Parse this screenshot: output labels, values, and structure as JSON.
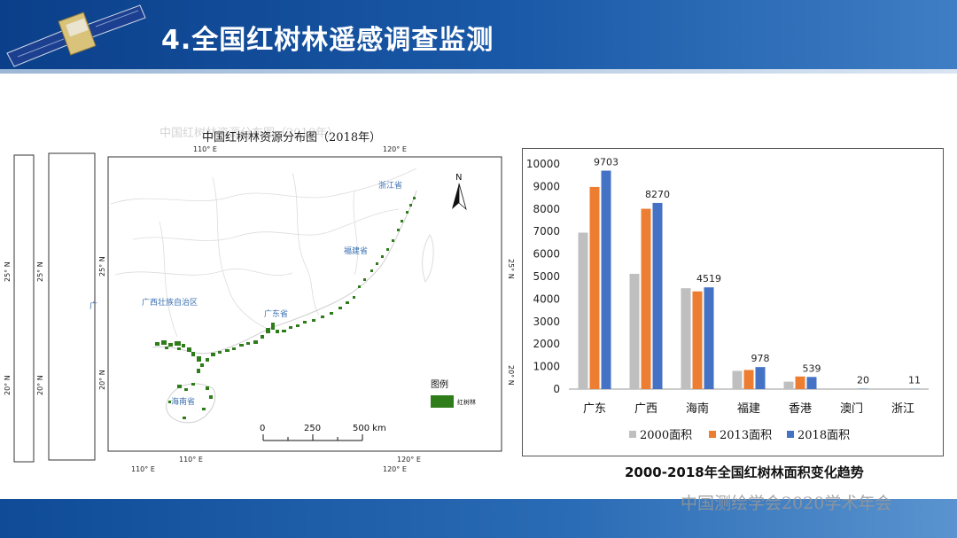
{
  "slide": {
    "title": "4.全国红树林遥感调查监测",
    "watermark": "中国测绘学会2020学术年会"
  },
  "map": {
    "title": "中国红树林资源分布图（2018年）",
    "lon_labels": [
      "110° E",
      "120° E"
    ],
    "lat_labels": [
      "25° N",
      "20° N"
    ],
    "province_labels": [
      "浙江省",
      "福建省",
      "广东省",
      "广西壮族自治区",
      "海南省"
    ],
    "partial_label": "广",
    "north_label": "N",
    "legend_title": "图例",
    "legend_item": "红树林",
    "legend_color": "#2e7d1a",
    "scale_labels": [
      "0",
      "250",
      "500 km"
    ]
  },
  "chart_data": {
    "type": "bar",
    "title": "2000-2018年全国红树林面积变化趋势",
    "categories": [
      "广东",
      "广西",
      "海南",
      "福建",
      "香港",
      "澳门",
      "浙江"
    ],
    "series": [
      {
        "name": "2000面积",
        "color": "#bfbfbf",
        "values": [
          6950,
          5120,
          4480,
          810,
          330,
          0,
          0
        ]
      },
      {
        "name": "2013面积",
        "color": "#ed7d31",
        "values": [
          8980,
          8010,
          4340,
          850,
          560,
          0,
          0
        ]
      },
      {
        "name": "2018面积",
        "color": "#4472c4",
        "values": [
          9703,
          8270,
          4519,
          978,
          539,
          20,
          11
        ]
      }
    ],
    "data_labels": [
      "9703",
      "8270",
      "4519",
      "978",
      "539",
      "20",
      "11"
    ],
    "yticks": [
      "10000",
      "9000",
      "8000",
      "7000",
      "6000",
      "5000",
      "4000",
      "3000",
      "2000",
      "1000",
      "0"
    ],
    "ylim": [
      0,
      10000
    ],
    "legend_position": "bottom"
  }
}
